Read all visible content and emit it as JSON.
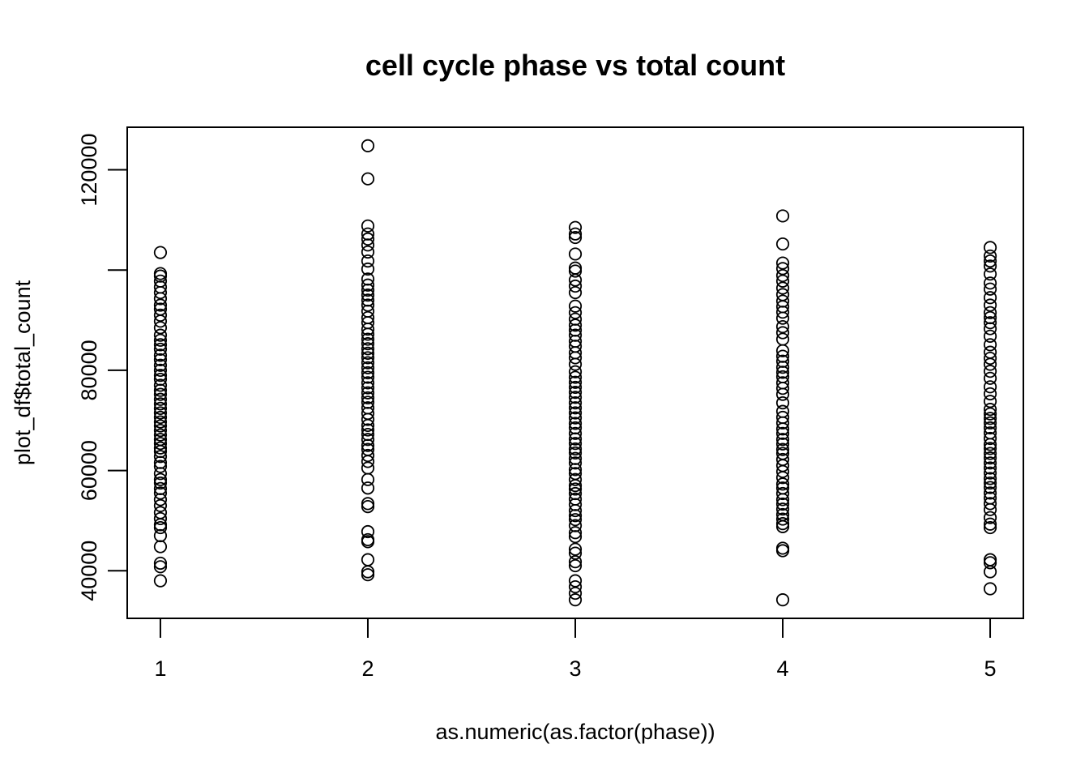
{
  "chart_data": {
    "type": "scatter",
    "title": "cell cycle phase vs total count",
    "xlabel": "as.numeric(as.factor(phase))",
    "ylabel": "plot_df$total_count",
    "xlim": [
      0.84,
      5.16
    ],
    "ylim": [
      30500,
      128500
    ],
    "x_ticks": [
      1,
      2,
      3,
      4,
      5
    ],
    "y_ticks": [
      40000,
      60000,
      80000,
      100000,
      120000
    ],
    "x_tick_labels": [
      "1",
      "2",
      "3",
      "4",
      "5"
    ],
    "y_tick_labels": [
      "40000",
      "60000",
      "80000",
      "",
      "120000"
    ],
    "grid": false,
    "legend": "none",
    "marker": "open-circle",
    "colors": {
      "point": "#000000",
      "axis": "#000000",
      "background": "#ffffff"
    },
    "groups": [
      {
        "x": 1,
        "y": [
          38000,
          40800,
          41500,
          44800,
          47000,
          48600,
          49200,
          50400,
          51600,
          53000,
          54200,
          55500,
          56400,
          57500,
          58200,
          59400,
          60800,
          61600,
          62800,
          63800,
          64500,
          65400,
          66200,
          67100,
          68000,
          68900,
          69700,
          70600,
          71500,
          72400,
          73300,
          74200,
          75200,
          76000,
          77000,
          78200,
          79000,
          80000,
          81000,
          82100,
          83000,
          84200,
          85100,
          86000,
          87000,
          88500,
          89800,
          91000,
          92200,
          93000,
          94300,
          95500,
          96600,
          97800,
          98800,
          99300,
          103500
        ]
      },
      {
        "x": 2,
        "y": [
          39200,
          39800,
          42200,
          45800,
          46200,
          47800,
          52800,
          53400,
          56500,
          58200,
          60500,
          61800,
          63000,
          64200,
          65000,
          66200,
          67200,
          68100,
          69000,
          70200,
          71400,
          72500,
          73600,
          74500,
          75500,
          76500,
          77500,
          78600,
          79500,
          80500,
          81500,
          82500,
          83400,
          84300,
          85300,
          86200,
          87200,
          88200,
          89500,
          90500,
          91800,
          93000,
          94000,
          95000,
          96000,
          97000,
          98200,
          100200,
          101800,
          103600,
          105000,
          106200,
          107200,
          108800,
          118200,
          124800
        ]
      },
      {
        "x": 3,
        "y": [
          34200,
          35500,
          36800,
          38000,
          41000,
          41800,
          43500,
          44300,
          46800,
          47600,
          49000,
          50200,
          51000,
          52000,
          53200,
          54300,
          55400,
          56300,
          57000,
          58200,
          59400,
          60200,
          61500,
          62400,
          63500,
          64300,
          65400,
          66300,
          67400,
          68500,
          69400,
          70500,
          71500,
          72500,
          73500,
          74600,
          75600,
          76600,
          77600,
          78600,
          79700,
          81200,
          82500,
          83500,
          84800,
          85800,
          87000,
          88000,
          89000,
          90200,
          91500,
          92800,
          95500,
          96800,
          98000,
          99800,
          100400,
          103200,
          106500,
          107200,
          108500
        ]
      },
      {
        "x": 4,
        "y": [
          34200,
          44000,
          44500,
          48800,
          49400,
          50300,
          51200,
          52300,
          53300,
          54200,
          55400,
          56500,
          57300,
          58600,
          59800,
          61000,
          62200,
          63400,
          64200,
          65300,
          66200,
          67400,
          68300,
          69500,
          70600,
          71800,
          73500,
          75200,
          76400,
          77500,
          78700,
          79600,
          80600,
          81800,
          82800,
          83900,
          86200,
          87500,
          88700,
          90400,
          91600,
          92700,
          93800,
          95100,
          96400,
          97800,
          98900,
          100300,
          101400,
          105200,
          110800
        ]
      },
      {
        "x": 5,
        "y": [
          36400,
          39800,
          41600,
          42200,
          48600,
          49300,
          50600,
          52200,
          53400,
          54500,
          55500,
          56600,
          57500,
          58400,
          59500,
          60500,
          61500,
          62500,
          63400,
          64400,
          65200,
          66400,
          67500,
          68500,
          69500,
          70400,
          71300,
          72200,
          73800,
          75300,
          76700,
          78400,
          79800,
          81200,
          82400,
          83600,
          85100,
          86800,
          88300,
          89500,
          90500,
          91500,
          93000,
          94500,
          96200,
          97400,
          99200,
          100800,
          101800,
          102800,
          104500
        ]
      }
    ]
  }
}
